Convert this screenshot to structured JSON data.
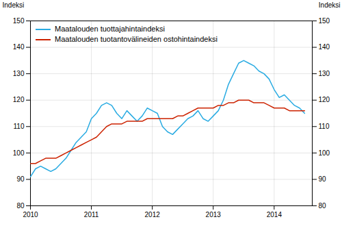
{
  "chart_data": {
    "type": "line",
    "ylabel": "Indeksi",
    "y2label": "Indeksi",
    "x": [
      2010,
      2010.0833333333333,
      2010.1666666666667,
      2010.25,
      2010.3333333333333,
      2010.4166666666667,
      2010.5,
      2010.5833333333333,
      2010.6666666666667,
      2010.75,
      2010.8333333333333,
      2010.9166666666667,
      2011,
      2011.0833333333333,
      2011.1666666666667,
      2011.25,
      2011.3333333333333,
      2011.4166666666667,
      2011.5,
      2011.5833333333333,
      2011.6666666666667,
      2011.75,
      2011.8333333333333,
      2011.9166666666667,
      2012,
      2012.0833333333333,
      2012.1666666666667,
      2012.25,
      2012.3333333333333,
      2012.4166666666667,
      2012.5,
      2012.5833333333333,
      2012.6666666666667,
      2012.75,
      2012.8333333333333,
      2012.9166666666667,
      2013,
      2013.0833333333333,
      2013.1666666666667,
      2013.25,
      2013.3333333333333,
      2013.4166666666667,
      2013.5,
      2013.5833333333333,
      2013.6666666666667,
      2013.75,
      2013.8333333333333,
      2013.9166666666667,
      2014,
      2014.0833333333333,
      2014.1666666666667,
      2014.25,
      2014.3333333333333,
      2014.4166666666667,
      2014.5
    ],
    "series": [
      {
        "name": "Maatalouden tuottajahintaindeksi",
        "color": "#29ABE2",
        "values": [
          91,
          94,
          95,
          94,
          93,
          94,
          96,
          98,
          101,
          104,
          106,
          108,
          113,
          115,
          118,
          119,
          118,
          115,
          113,
          116,
          114,
          112,
          114,
          117,
          116,
          115,
          110,
          108,
          107,
          109,
          111,
          113,
          114,
          116,
          113,
          112,
          114,
          116,
          120,
          126,
          130,
          134,
          135,
          134,
          133,
          131,
          130,
          128,
          124,
          121,
          122,
          120,
          118,
          117,
          115
        ]
      },
      {
        "name": "Maatalouden tuotantovälineiden ostohintaindeksi",
        "color": "#CC2200",
        "values": [
          96,
          96,
          97,
          98,
          98,
          98,
          99,
          100,
          101,
          102,
          103,
          104,
          105,
          106,
          108,
          110,
          111,
          111,
          111,
          112,
          112,
          112,
          112,
          113,
          113,
          113,
          113,
          113,
          113,
          114,
          114,
          115,
          116,
          117,
          117,
          117,
          117,
          118,
          118,
          119,
          119,
          120,
          120,
          120,
          119,
          119,
          119,
          118,
          117,
          117,
          117,
          116,
          116,
          116,
          116
        ]
      }
    ],
    "xlim": [
      2010.0,
      2014.625
    ],
    "xticks": [
      2010,
      2011,
      2012,
      2013,
      2014
    ],
    "ylim": [
      80,
      150
    ],
    "yticks": [
      80,
      90,
      100,
      110,
      120,
      130,
      140,
      150
    ],
    "y2lim": [
      80,
      150
    ],
    "y2ticks": [
      80,
      90,
      100,
      110,
      120,
      130,
      140,
      150
    ],
    "grid": true,
    "legend": "upper left"
  }
}
